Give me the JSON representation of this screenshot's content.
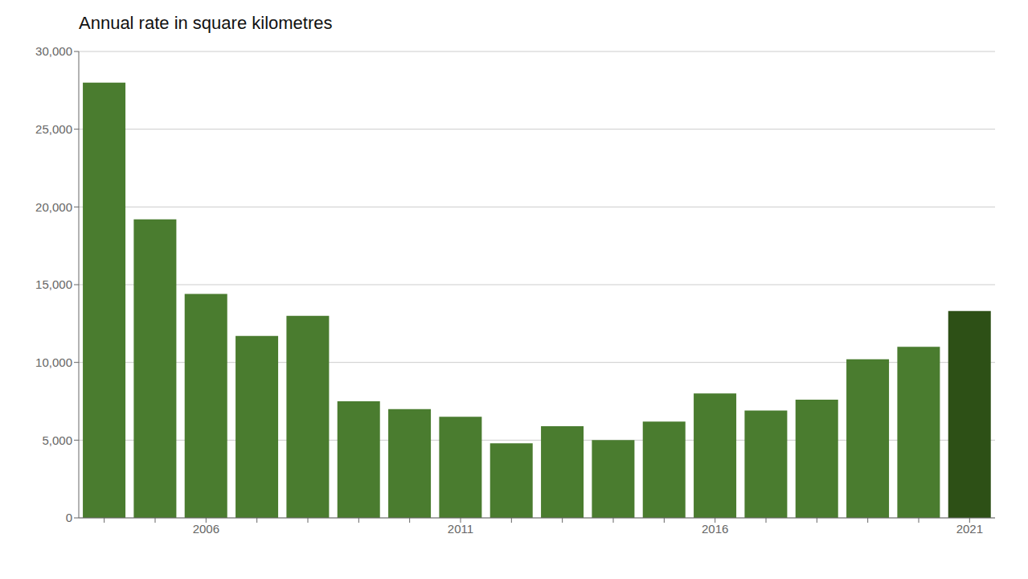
{
  "chart_data": {
    "type": "bar",
    "title": "Annual rate in square kilometres",
    "categories": [
      null,
      null,
      "2006",
      null,
      null,
      null,
      null,
      "2011",
      null,
      null,
      null,
      null,
      "2016",
      null,
      null,
      null,
      null,
      "2021"
    ],
    "values": [
      28000,
      19200,
      14400,
      11700,
      13000,
      7500,
      7000,
      6500,
      4800,
      5900,
      5000,
      6200,
      8000,
      6900,
      7600,
      10200,
      11000,
      13300
    ],
    "colors": [
      "#4a7c2f",
      "#4a7c2f",
      "#4a7c2f",
      "#4a7c2f",
      "#4a7c2f",
      "#4a7c2f",
      "#4a7c2f",
      "#4a7c2f",
      "#4a7c2f",
      "#4a7c2f",
      "#4a7c2f",
      "#4a7c2f",
      "#4a7c2f",
      "#4a7c2f",
      "#4a7c2f",
      "#4a7c2f",
      "#4a7c2f",
      "#2d5016"
    ],
    "ylim": [
      0,
      30000
    ],
    "yticks": [
      0,
      {
        "value": 5000,
        "label": "5,000"
      },
      {
        "value": 10000,
        "label": "10,000"
      },
      {
        "value": 15000,
        "label": "15,000"
      },
      {
        "value": 20000,
        "label": "20,000"
      },
      {
        "value": 25000,
        "label": "25,000"
      },
      {
        "value": 30000,
        "label": "30,000"
      }
    ],
    "grid": true
  }
}
